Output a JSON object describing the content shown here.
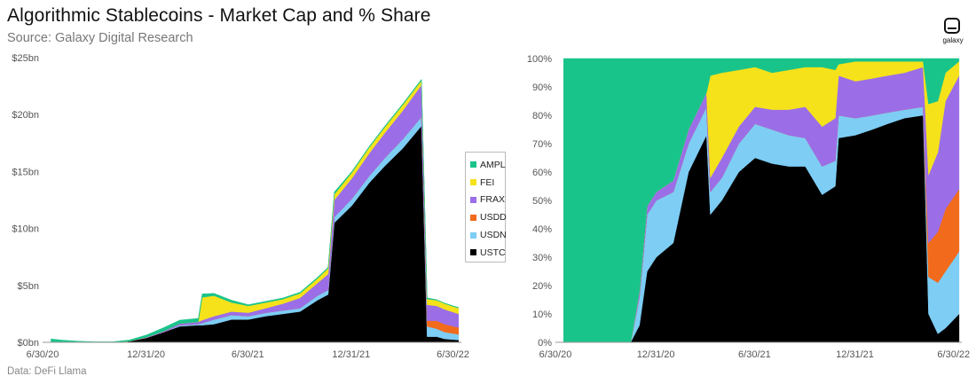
{
  "header": {
    "title": "Algorithmic Stablecoins - Market Cap and % Share",
    "subtitle": "Source: Galaxy Digital Research"
  },
  "footer": {
    "note": "Data: DeFi Llama"
  },
  "logo": {
    "text": "galaxy"
  },
  "legend": {
    "placement": "right of left chart",
    "items": [
      {
        "label": "AMPL",
        "color": "#19c48b"
      },
      {
        "label": "FEI",
        "color": "#f5e21a"
      },
      {
        "label": "FRAX",
        "color": "#9b6ee8"
      },
      {
        "label": "USDD",
        "color": "#f26a1b"
      },
      {
        "label": "USDN",
        "color": "#7dcdf5"
      },
      {
        "label": "USTC",
        "color": "#000000"
      }
    ]
  },
  "chart_data": [
    {
      "type": "area",
      "stacked": true,
      "title": "Market Cap",
      "ylim": [
        0,
        25
      ],
      "y_tick_labels": [
        "$0bn",
        "$5bn",
        "$10bn",
        "$15bn",
        "$20bn",
        "$25bn"
      ],
      "x_tick_labels": [
        "6/30/20",
        "12/31/20",
        "6/30/21",
        "12/31/21",
        "6/30/22"
      ],
      "x": [
        "2020-07-15",
        "2020-08-01",
        "2020-09-01",
        "2020-10-01",
        "2020-11-01",
        "2020-12-01",
        "2021-01-01",
        "2021-02-01",
        "2021-03-01",
        "2021-04-03",
        "2021-04-10",
        "2021-05-01",
        "2021-06-01",
        "2021-07-01",
        "2021-08-01",
        "2021-09-01",
        "2021-10-01",
        "2021-11-01",
        "2021-11-20",
        "2021-12-01",
        "2022-01-01",
        "2022-02-01",
        "2022-03-01",
        "2022-04-01",
        "2022-05-05",
        "2022-05-15",
        "2022-06-01",
        "2022-06-15",
        "2022-07-10"
      ],
      "series": [
        {
          "name": "USTC",
          "values": [
            0,
            0,
            0,
            0,
            0,
            0.1,
            0.4,
            0.9,
            1.4,
            1.5,
            1.5,
            1.6,
            2.0,
            2.0,
            2.3,
            2.5,
            2.7,
            3.7,
            4.2,
            10.5,
            12.0,
            14.0,
            15.5,
            17.0,
            19.0,
            0.5,
            0.5,
            0.3,
            0.2
          ]
        },
        {
          "name": "USDN",
          "values": [
            0,
            0,
            0,
            0,
            0,
            0,
            0,
            0,
            0.1,
            0.1,
            0.2,
            0.4,
            0.4,
            0.3,
            0.3,
            0.3,
            0.3,
            0.4,
            0.4,
            0.5,
            0.6,
            0.6,
            0.7,
            0.8,
            0.8,
            0.9,
            0.7,
            0.6,
            0.5
          ]
        },
        {
          "name": "USDD",
          "values": [
            0,
            0,
            0,
            0,
            0,
            0,
            0,
            0,
            0,
            0,
            0,
            0,
            0,
            0,
            0,
            0,
            0,
            0,
            0,
            0,
            0,
            0,
            0,
            0,
            0,
            0.5,
            0.7,
            0.7,
            0.6
          ]
        },
        {
          "name": "FRAX",
          "values": [
            0,
            0,
            0,
            0,
            0,
            0,
            0.05,
            0.1,
            0.15,
            0.2,
            0.25,
            0.3,
            0.3,
            0.3,
            0.4,
            0.6,
            0.9,
            1.1,
            1.4,
            1.5,
            1.8,
            2.0,
            2.2,
            2.5,
            2.8,
            1.4,
            1.3,
            1.3,
            1.2
          ]
        },
        {
          "name": "FEI",
          "values": [
            0,
            0,
            0,
            0,
            0,
            0,
            0,
            0,
            0,
            0,
            2.0,
            1.8,
            0.8,
            0.6,
            0.5,
            0.4,
            0.4,
            0.4,
            0.5,
            0.5,
            0.5,
            0.5,
            0.5,
            0.5,
            0.4,
            0.5,
            0.5,
            0.5,
            0.5
          ]
        },
        {
          "name": "AMPL",
          "values": [
            0.3,
            0.2,
            0.1,
            0.05,
            0.05,
            0.1,
            0.2,
            0.3,
            0.3,
            0.3,
            0.3,
            0.2,
            0.2,
            0.1,
            0.1,
            0.1,
            0.1,
            0.1,
            0.1,
            0.2,
            0.1,
            0.1,
            0.1,
            0.1,
            0.1,
            0.1,
            0.05,
            0.05,
            0.05
          ]
        }
      ]
    },
    {
      "type": "area",
      "stacked": true,
      "title": "% Share",
      "ylim": [
        0,
        100
      ],
      "y_tick_labels": [
        "0%",
        "10%",
        "20%",
        "30%",
        "40%",
        "50%",
        "60%",
        "70%",
        "80%",
        "90%",
        "100%"
      ],
      "x_tick_labels": [
        "6/30/20",
        "12/31/20",
        "6/30/21",
        "12/31/21",
        "6/30/22"
      ],
      "x": [
        "2020-07-15",
        "2020-11-15",
        "2020-12-01",
        "2020-12-15",
        "2021-01-01",
        "2021-02-01",
        "2021-03-01",
        "2021-04-03",
        "2021-04-10",
        "2021-05-01",
        "2021-06-01",
        "2021-07-01",
        "2021-08-01",
        "2021-09-01",
        "2021-10-01",
        "2021-11-01",
        "2021-11-25",
        "2021-12-01",
        "2022-01-01",
        "2022-02-01",
        "2022-03-01",
        "2022-04-01",
        "2022-05-05",
        "2022-05-15",
        "2022-06-01",
        "2022-06-15",
        "2022-07-10"
      ],
      "series": [
        {
          "name": "USTC",
          "values": [
            0,
            0,
            6,
            25,
            30,
            35,
            60,
            73,
            45,
            50,
            60,
            65,
            63,
            62,
            62,
            52,
            55,
            72,
            73,
            75,
            77,
            79,
            80,
            10,
            3,
            5,
            10
          ]
        },
        {
          "name": "USDN",
          "values": [
            0,
            0,
            10,
            20,
            20,
            18,
            10,
            10,
            8,
            8,
            10,
            12,
            12,
            11,
            10,
            10,
            9,
            8,
            6,
            5,
            4,
            3,
            3,
            13,
            18,
            20,
            22
          ]
        },
        {
          "name": "USDD",
          "values": [
            0,
            0,
            0,
            0,
            0,
            0,
            0,
            0,
            0,
            0,
            0,
            0,
            0,
            0,
            0,
            0,
            0,
            0,
            0,
            0,
            0,
            0,
            0,
            12,
            18,
            22,
            22
          ]
        },
        {
          "name": "FRAX",
          "values": [
            0,
            0,
            2,
            3,
            3,
            4,
            5,
            5,
            5,
            7,
            6,
            6,
            7,
            9,
            11,
            14,
            15,
            14,
            13,
            13,
            13,
            13,
            14,
            24,
            28,
            38,
            40
          ]
        },
        {
          "name": "FEI",
          "values": [
            0,
            0,
            0,
            0,
            0,
            0,
            0,
            0,
            36,
            30,
            20,
            14,
            13,
            14,
            14,
            21,
            17,
            4,
            7,
            6,
            5,
            4,
            2,
            25,
            18,
            10,
            5
          ]
        },
        {
          "name": "AMPL",
          "values": [
            100,
            100,
            82,
            52,
            47,
            43,
            25,
            12,
            6,
            5,
            4,
            3,
            5,
            4,
            3,
            3,
            4,
            2,
            1,
            1,
            1,
            1,
            1,
            16,
            15,
            5,
            1
          ]
        }
      ]
    }
  ]
}
